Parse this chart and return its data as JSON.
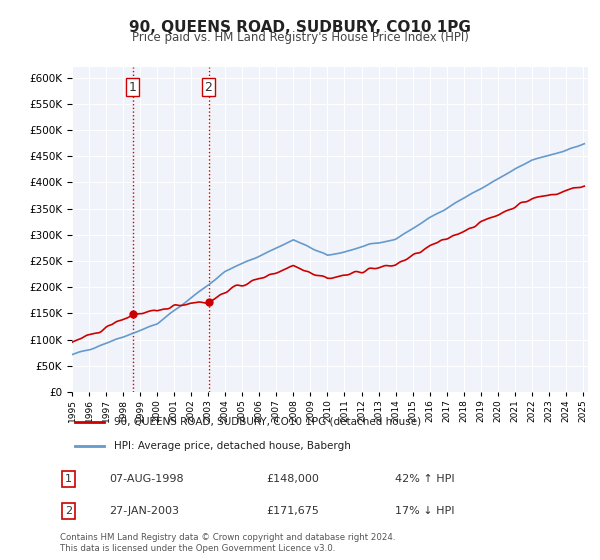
{
  "title": "90, QUEENS ROAD, SUDBURY, CO10 1PG",
  "subtitle": "Price paid vs. HM Land Registry's House Price Index (HPI)",
  "ylabel_ticks": [
    "£0",
    "£50K",
    "£100K",
    "£150K",
    "£200K",
    "£250K",
    "£300K",
    "£350K",
    "£400K",
    "£450K",
    "£500K",
    "£550K",
    "£600K"
  ],
  "ylim": [
    0,
    620000
  ],
  "yticks": [
    0,
    50000,
    100000,
    150000,
    200000,
    250000,
    300000,
    350000,
    400000,
    450000,
    500000,
    550000,
    600000
  ],
  "legend_red": "90, QUEENS ROAD, SUDBURY, CO10 1PG (detached house)",
  "legend_blue": "HPI: Average price, detached house, Babergh",
  "transaction1_label": "1",
  "transaction1_date": "07-AUG-1998",
  "transaction1_price": "£148,000",
  "transaction1_hpi": "42% ↑ HPI",
  "transaction1_year": 1998.6,
  "transaction1_value": 148000,
  "transaction2_label": "2",
  "transaction2_date": "27-JAN-2003",
  "transaction2_price": "£171,675",
  "transaction2_hpi": "17% ↓ HPI",
  "transaction2_year": 2003.07,
  "transaction2_value": 171675,
  "vline1_year": 1998.6,
  "vline2_year": 2003.07,
  "footnote": "Contains HM Land Registry data © Crown copyright and database right 2024.\nThis data is licensed under the Open Government Licence v3.0.",
  "background_color": "#ffffff",
  "plot_bg_color": "#f0f4fa",
  "grid_color": "#ffffff",
  "red_color": "#cc0000",
  "blue_color": "#6699cc"
}
